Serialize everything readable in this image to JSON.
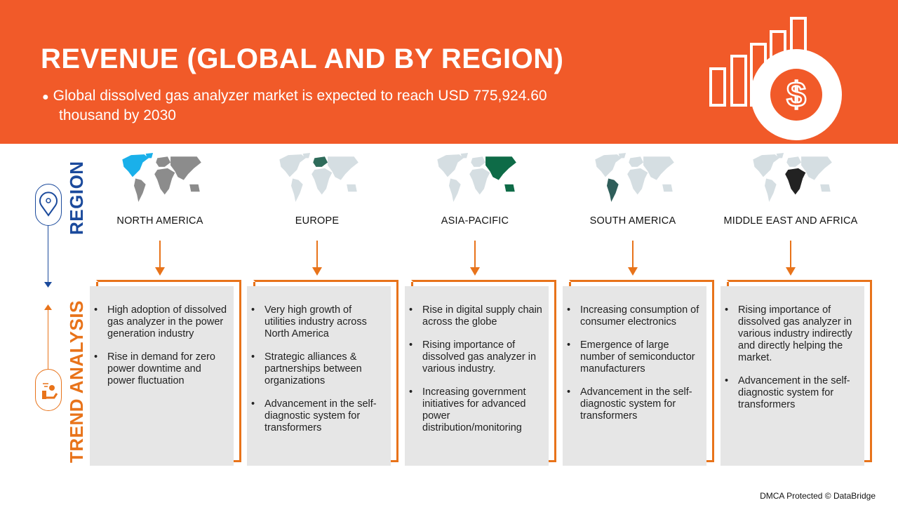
{
  "header": {
    "title": "REVENUE (GLOBAL AND BY REGION)",
    "bullet": "●",
    "subtitle_line1": "Global dissolved gas analyzer market is expected to reach USD 775,924.60",
    "subtitle_line2": "thousand by 2030",
    "icon": "revenue-bar-chart-dollar-icon"
  },
  "colors": {
    "header_bg": "#F15A29",
    "accent_orange": "#E8731A",
    "region_blue": "#1B4A9C",
    "box_gray": "#E6E6E6"
  },
  "side_labels": {
    "region": "REGION",
    "trend": "TREND ANALYSIS",
    "region_icon": "location-pin-icon",
    "trend_icon": "hand-with-coin-icon"
  },
  "regions": [
    {
      "name": "NORTH AMERICA",
      "highlight": "na",
      "highlight_color": "#1AB0EA",
      "base_color": "#8C8C8C",
      "trends": [
        "High adoption of dissolved gas analyzer in the power generation industry",
        "Rise in demand for zero power downtime and power fluctuation"
      ]
    },
    {
      "name": "EUROPE",
      "highlight": "eu",
      "highlight_color": "#2E6B5A",
      "base_color": "#D5DEE2",
      "trends": [
        "Very high growth of utilities industry across North America",
        "Strategic alliances & partnerships between organizations",
        "Advancement in the self-diagnostic system for transformers"
      ]
    },
    {
      "name": "ASIA-PACIFIC",
      "highlight": "ap",
      "highlight_color": "#0E6B47",
      "base_color": "#D5DEE2",
      "trends": [
        "Rise in digital supply chain across the globe",
        "Rising importance of dissolved gas analyzer in various industry.",
        "Increasing government initiatives for advanced power distribution/monitoring"
      ]
    },
    {
      "name": "SOUTH AMERICA",
      "highlight": "sa",
      "highlight_color": "#2F5E5A",
      "base_color": "#D5DEE2",
      "trends": [
        "Increasing consumption of consumer electronics",
        "Emergence of large number of semiconductor manufacturers",
        "Advancement in the self-diagnostic system for transformers"
      ]
    },
    {
      "name": "MIDDLE EAST AND AFRICA",
      "highlight": "mea",
      "highlight_color": "#222222",
      "base_color": "#D5DEE2",
      "trends": [
        "Rising importance of dissolved gas analyzer in various industry indirectly and directly helping the market.",
        "Advancement in the self-diagnostic system for transformers"
      ]
    }
  ],
  "footer": "DMCA Protected © DataBridge"
}
